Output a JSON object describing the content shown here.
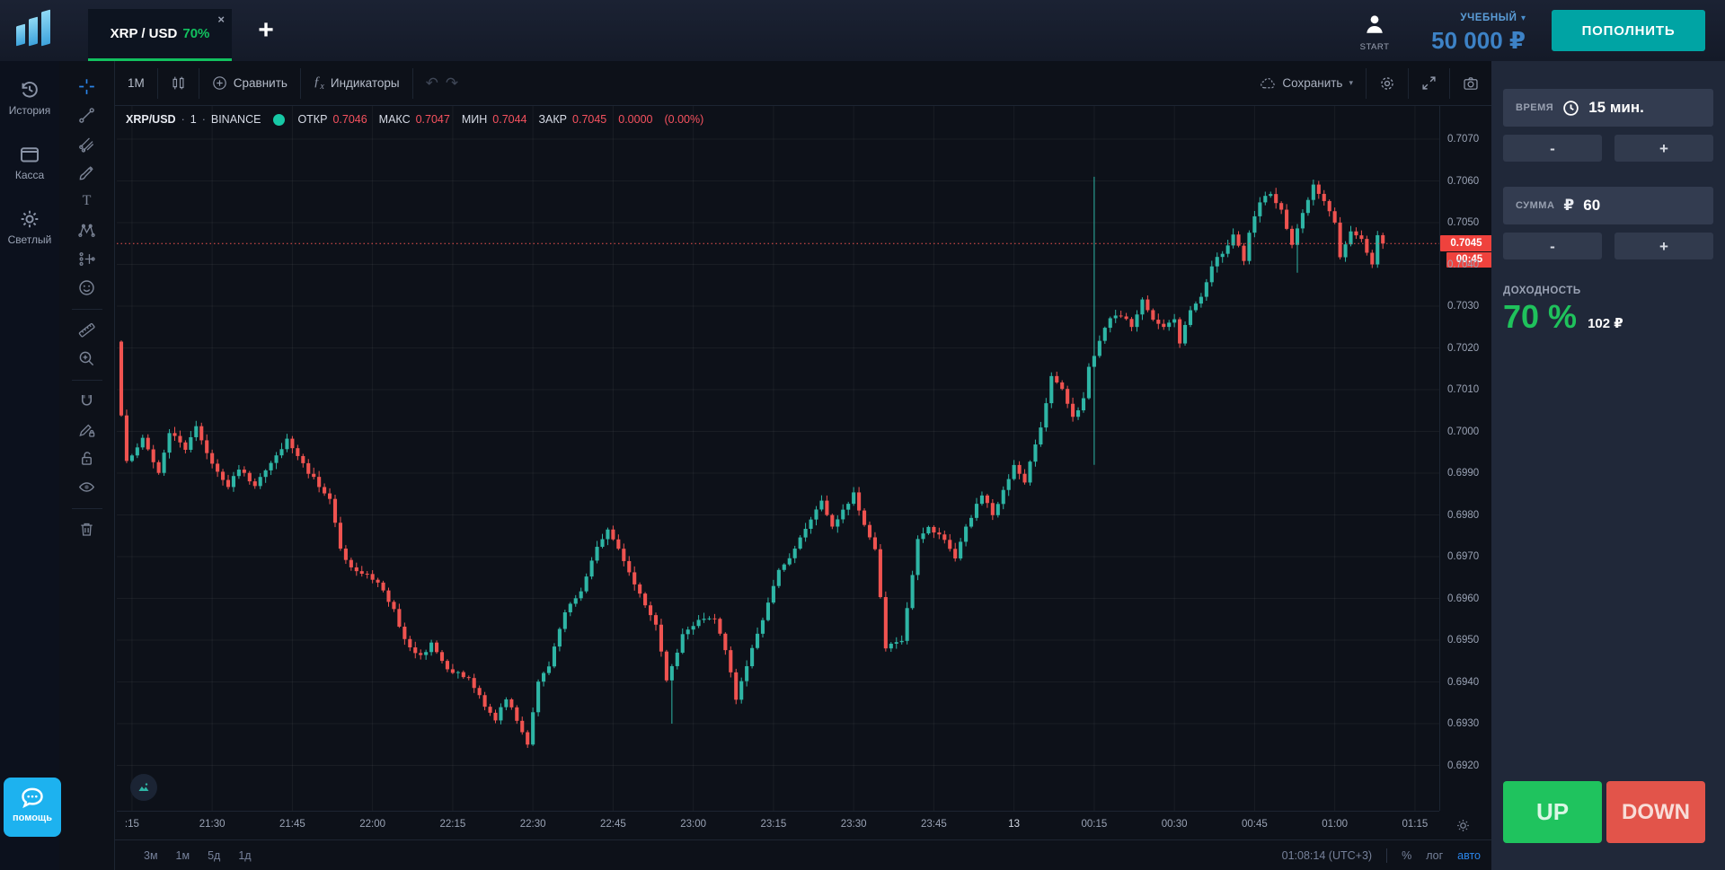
{
  "app": {
    "tab": {
      "symbol": "XRP / USD",
      "payout": "70%",
      "close": "×"
    },
    "add_tab": "+",
    "start_label": "START",
    "account_type": "УЧЕБНЫЙ",
    "account_caret": "▾",
    "balance": "50 000 ₽",
    "deposit_button": "ПОПОЛНИТЬ"
  },
  "sidebar": {
    "items": [
      {
        "label": "История"
      },
      {
        "label": "Касса"
      },
      {
        "label": "Светлый"
      }
    ],
    "help_label": "помощь"
  },
  "chart_toolbar": {
    "interval": "1М",
    "compare": "Сравнить",
    "indicators": "Индикаторы",
    "save": "Сохранить",
    "save_caret": "▾",
    "undo": "↶",
    "redo": "↷"
  },
  "legend": {
    "symbol": "XRP/USD",
    "sep1": "·",
    "interval": "1",
    "sep2": "·",
    "exchange": "BINANCE",
    "open_label": "ОТКР",
    "open": "0.7046",
    "high_label": "МАКС",
    "high": "0.7047",
    "low_label": "МИН",
    "low": "0.7044",
    "close_label": "ЗАКР",
    "close": "0.7045",
    "change": "0.0000",
    "change_pct": "(0.00%)"
  },
  "axis": {
    "price_ticks": [
      "0.7070",
      "0.7060",
      "0.7050",
      "0.7040",
      "0.7030",
      "0.7020",
      "0.7010",
      "0.7000",
      "0.6990",
      "0.6980",
      "0.6970",
      "0.6960",
      "0.6950",
      "0.6940",
      "0.6930",
      "0.6920"
    ],
    "time_ticks": [
      {
        "m": 2,
        "label": ":15"
      },
      {
        "m": 17,
        "label": "21:30"
      },
      {
        "m": 32,
        "label": "21:45"
      },
      {
        "m": 47,
        "label": "22:00"
      },
      {
        "m": 62,
        "label": "22:15"
      },
      {
        "m": 77,
        "label": "22:30"
      },
      {
        "m": 92,
        "label": "22:45"
      },
      {
        "m": 107,
        "label": "23:00"
      },
      {
        "m": 122,
        "label": "23:15"
      },
      {
        "m": 137,
        "label": "23:30"
      },
      {
        "m": 152,
        "label": "23:45"
      },
      {
        "m": 167,
        "label": "13",
        "major": true
      },
      {
        "m": 182,
        "label": "00:15"
      },
      {
        "m": 197,
        "label": "00:30"
      },
      {
        "m": 212,
        "label": "00:45"
      },
      {
        "m": 227,
        "label": "01:00"
      },
      {
        "m": 242,
        "label": "01:15"
      }
    ],
    "current_price": "0.7045",
    "countdown": "00:45"
  },
  "status_bar": {
    "ranges": [
      "3м",
      "1м",
      "5д",
      "1д"
    ],
    "clock": "01:08:14 (UTC+3)",
    "percent": "%",
    "log": "лог",
    "auto": "авто"
  },
  "panel": {
    "time_label": "ВРЕМЯ",
    "time_value": "15 мин.",
    "amount_label": "СУММА",
    "currency": "₽",
    "amount_value": "60",
    "minus": "-",
    "plus": "+",
    "payout_label": "ДОХОДНОСТЬ",
    "payout_pct": "70 %",
    "payout_amount": "102 ₽",
    "up": "UP",
    "down": "DOWN"
  },
  "chart_data": {
    "type": "candlestick",
    "symbol": "XRP/USD",
    "exchange": "BINANCE",
    "interval_minutes": 1,
    "title": "XRP/USD 1m candles, BINANCE",
    "ohlc_legend": {
      "open": 0.7046,
      "high": 0.7047,
      "low": 0.7044,
      "close": 0.7045,
      "change": 0.0,
      "change_pct": 0.0
    },
    "current_price": 0.7045,
    "countdown": "00:45",
    "price_axis": {
      "min": 0.6915,
      "max": 0.7075,
      "tick_step": 0.001,
      "grid": true
    },
    "time_axis": {
      "start": "21:13",
      "end": "01:15",
      "tick_step_minutes": 15,
      "grid": true
    },
    "colors": {
      "up": "#2eb5a5",
      "down": "#ef5350",
      "price_line": "#ef5350"
    },
    "price_path": [
      [
        0,
        0.7022
      ],
      [
        1,
        0.7004
      ],
      [
        2,
        0.6993
      ],
      [
        5,
        0.6998
      ],
      [
        8,
        0.699
      ],
      [
        10,
        0.7
      ],
      [
        13,
        0.6996
      ],
      [
        15,
        0.7001
      ],
      [
        18,
        0.6992
      ],
      [
        21,
        0.6987
      ],
      [
        23,
        0.6991
      ],
      [
        26,
        0.6987
      ],
      [
        29,
        0.6992
      ],
      [
        32,
        0.6998
      ],
      [
        35,
        0.6992
      ],
      [
        38,
        0.6987
      ],
      [
        40,
        0.6984
      ],
      [
        42,
        0.6972
      ],
      [
        44,
        0.6967
      ],
      [
        47,
        0.6966
      ],
      [
        50,
        0.6962
      ],
      [
        52,
        0.6957
      ],
      [
        54,
        0.695
      ],
      [
        57,
        0.6946
      ],
      [
        59,
        0.6949
      ],
      [
        62,
        0.6943
      ],
      [
        66,
        0.6941
      ],
      [
        69,
        0.6934
      ],
      [
        71,
        0.6931
      ],
      [
        73,
        0.6936
      ],
      [
        75,
        0.6931
      ],
      [
        77,
        0.6925
      ],
      [
        79,
        0.694
      ],
      [
        81,
        0.6944
      ],
      [
        84,
        0.6957
      ],
      [
        87,
        0.6962
      ],
      [
        90,
        0.6972
      ],
      [
        92,
        0.6977
      ],
      [
        95,
        0.6969
      ],
      [
        98,
        0.6961
      ],
      [
        101,
        0.6954
      ],
      [
        103,
        0.694
      ],
      [
        106,
        0.6951
      ],
      [
        109,
        0.6955
      ],
      [
        112,
        0.6955
      ],
      [
        114,
        0.6948
      ],
      [
        116,
        0.6936
      ],
      [
        118,
        0.6944
      ],
      [
        121,
        0.6955
      ],
      [
        124,
        0.6967
      ],
      [
        126,
        0.697
      ],
      [
        129,
        0.6977
      ],
      [
        132,
        0.6983
      ],
      [
        134,
        0.6977
      ],
      [
        138,
        0.6985
      ],
      [
        140,
        0.6978
      ],
      [
        142,
        0.6972
      ],
      [
        144,
        0.6948
      ],
      [
        147,
        0.695
      ],
      [
        150,
        0.6974
      ],
      [
        152,
        0.6977
      ],
      [
        155,
        0.6974
      ],
      [
        157,
        0.697
      ],
      [
        159,
        0.6977
      ],
      [
        162,
        0.6985
      ],
      [
        164,
        0.698
      ],
      [
        166,
        0.6986
      ],
      [
        168,
        0.6992
      ],
      [
        170,
        0.6988
      ],
      [
        173,
        0.7001
      ],
      [
        175,
        0.7013
      ],
      [
        177,
        0.701
      ],
      [
        179,
        0.7003
      ],
      [
        181,
        0.7008
      ],
      [
        182,
        0.7015
      ],
      [
        184,
        0.7022
      ],
      [
        186,
        0.7027
      ],
      [
        188,
        0.7028
      ],
      [
        190,
        0.7025
      ],
      [
        192,
        0.7032
      ],
      [
        194,
        0.7027
      ],
      [
        196,
        0.7025
      ],
      [
        198,
        0.7027
      ],
      [
        199,
        0.7021
      ],
      [
        201,
        0.7029
      ],
      [
        203,
        0.7032
      ],
      [
        205,
        0.704
      ],
      [
        207,
        0.7043
      ],
      [
        209,
        0.7047
      ],
      [
        211,
        0.7041
      ],
      [
        212,
        0.7048
      ],
      [
        214,
        0.7055
      ],
      [
        216,
        0.7057
      ],
      [
        218,
        0.7053
      ],
      [
        220,
        0.7045
      ],
      [
        222,
        0.7052
      ],
      [
        224,
        0.7059
      ],
      [
        226,
        0.7055
      ],
      [
        228,
        0.705
      ],
      [
        229,
        0.7042
      ],
      [
        231,
        0.7048
      ],
      [
        233,
        0.7046
      ],
      [
        235,
        0.704
      ],
      [
        236,
        0.7047
      ],
      [
        237,
        0.7045
      ]
    ],
    "spikes": [
      {
        "m": 182,
        "high": 0.7061,
        "low": 0.6992
      },
      {
        "m": 103,
        "low": 0.693
      },
      {
        "m": 220,
        "low": 0.7038
      }
    ]
  }
}
